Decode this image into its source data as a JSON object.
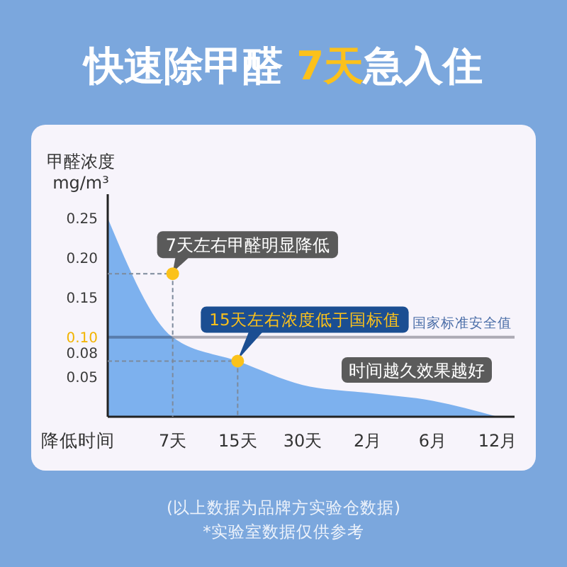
{
  "chart_data": {
    "type": "area",
    "title": "快速除甲醛 7天急入住",
    "ylabel": "甲醛浓度 mg/m³",
    "xlabel": "降低时间",
    "categories": [
      null,
      "7天",
      "15天",
      "30天",
      "2月",
      "6月",
      "12月"
    ],
    "series": [
      {
        "color": "#7db1ee",
        "values": [
          0.25,
          0.1,
          0.07,
          0.04,
          0.03,
          0.02,
          0
        ]
      },
      {
        "type": "scatter",
        "color": "#fbc21a",
        "marker": "circle",
        "x": [
          "7天",
          "15天"
        ],
        "values": [
          0.18,
          0.07
        ]
      }
    ],
    "ylim": [
      0,
      0.28
    ],
    "yticks": [
      0.05,
      0.08,
      {
        "value": 0.1,
        "label": "0.10"
      },
      0.15,
      {
        "value": 0.2,
        "label": "0.20"
      },
      0.25
    ],
    "ref_lines": [
      {
        "axis": "y",
        "value": 0.1,
        "label": "国家标准安全值",
        "color": "#b3b3b8"
      }
    ],
    "annotations": [
      {
        "text": "7天左右甲醛明显降低",
        "x": "7天",
        "y": 0.18
      },
      {
        "text": "15天左右浓度低于国标值",
        "x": "15天",
        "y": 0.07
      },
      "时间越久效果越好",
      "(以上数据为品牌方实验仓数据)",
      "*实验室数据仅供参考"
    ]
  }
}
